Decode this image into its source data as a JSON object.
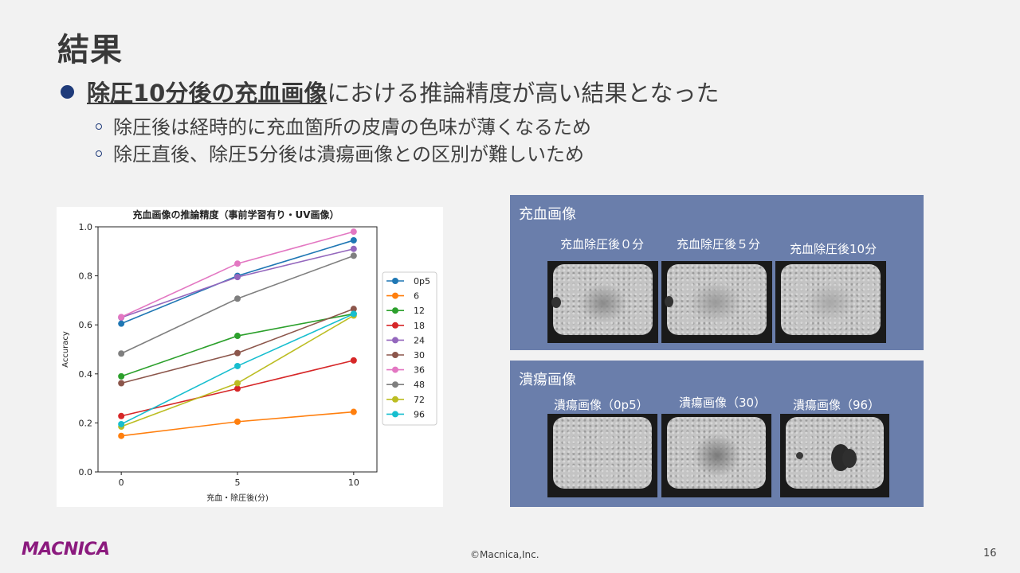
{
  "slide": {
    "title": "結果",
    "main_bullet_emph": "除圧10分後の充血画像",
    "main_bullet_rest": "における推論精度が高い結果となった",
    "sub_bullets": [
      "除圧後は経時的に充血箇所の皮膚の色味が薄くなるため",
      "除圧直後、除圧5分後は潰瘍画像との区別が難しいため"
    ],
    "logo": "MACNICA",
    "copyright": "©Macnica,Inc.",
    "page_number": "16"
  },
  "panels": {
    "hyperemia": {
      "title": "充血画像",
      "captions": [
        "充血除圧後０分",
        "充血除圧後５分",
        "充血除圧後10分"
      ]
    },
    "ulcer": {
      "title": "潰瘍画像",
      "captions": [
        "潰瘍画像（0p5）",
        "潰瘍画像（30）",
        "潰瘍画像（96）"
      ]
    }
  },
  "chart_data": {
    "type": "line",
    "title": "充血画像の推論精度（事前学習有り・UV画像）",
    "xlabel": "充血・除圧後(分)",
    "ylabel": "Accuracy",
    "x": [
      0,
      5,
      10
    ],
    "xticks": [
      "0",
      "5",
      "10"
    ],
    "yticks": [
      "0.0",
      "0.2",
      "0.4",
      "0.6",
      "0.8",
      "1.0"
    ],
    "ylim": [
      0,
      1.0
    ],
    "legend_position": "right",
    "series": [
      {
        "name": "0p5",
        "color": "#1f77b4",
        "values": [
          0.605,
          0.8,
          0.945
        ]
      },
      {
        "name": "6",
        "color": "#ff7f0e",
        "values": [
          0.147,
          0.205,
          0.245
        ]
      },
      {
        "name": "12",
        "color": "#2ca02c",
        "values": [
          0.39,
          0.555,
          0.645
        ]
      },
      {
        "name": "18",
        "color": "#d62728",
        "values": [
          0.228,
          0.34,
          0.455
        ]
      },
      {
        "name": "24",
        "color": "#9467bd",
        "values": [
          0.63,
          0.795,
          0.91
        ]
      },
      {
        "name": "30",
        "color": "#8c564b",
        "values": [
          0.362,
          0.485,
          0.665
        ]
      },
      {
        "name": "36",
        "color": "#e377c2",
        "values": [
          0.632,
          0.85,
          0.98
        ]
      },
      {
        "name": "48",
        "color": "#7f7f7f",
        "values": [
          0.483,
          0.707,
          0.882
        ]
      },
      {
        "name": "72",
        "color": "#bcbd22",
        "values": [
          0.185,
          0.362,
          0.638
        ]
      },
      {
        "name": "96",
        "color": "#17becf",
        "values": [
          0.195,
          0.432,
          0.645
        ]
      }
    ]
  }
}
